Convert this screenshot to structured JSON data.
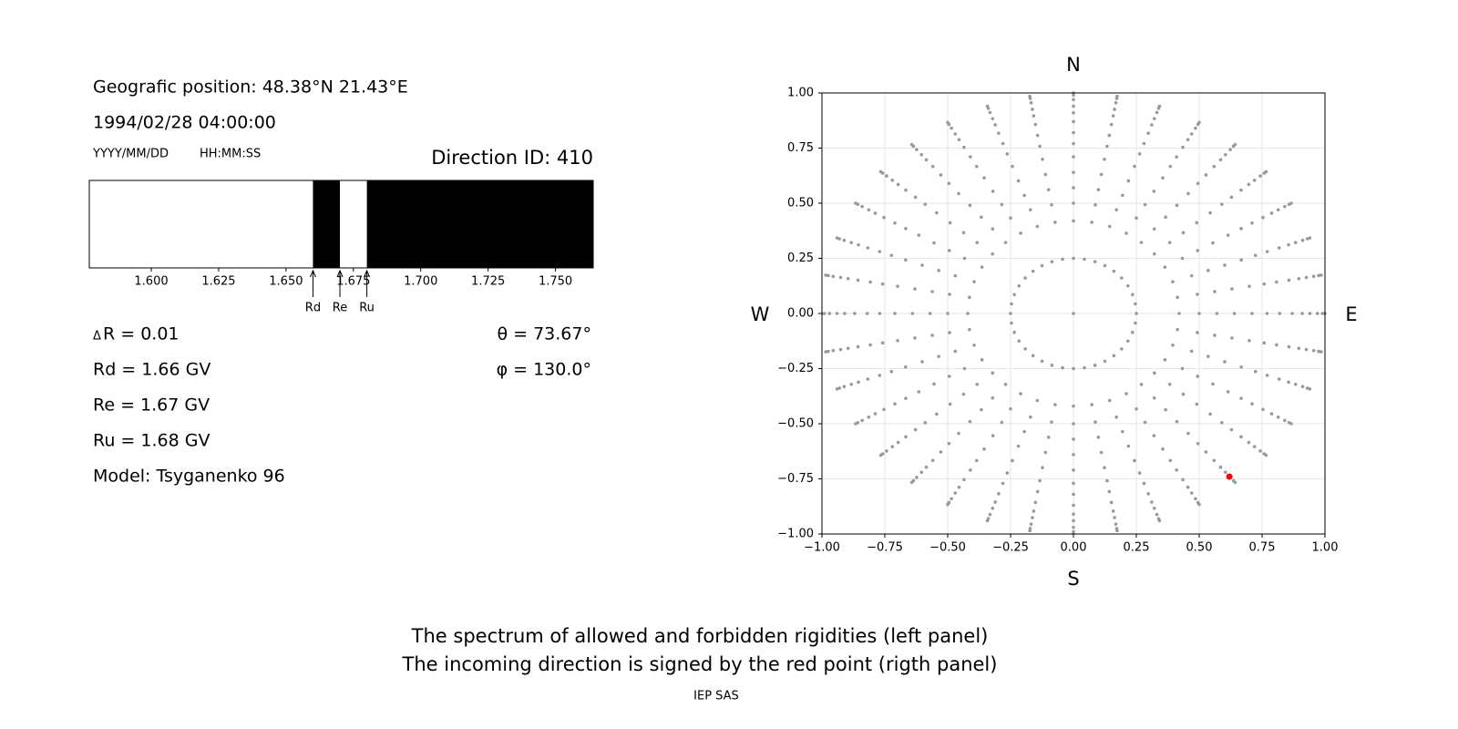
{
  "position": "Geografic position: 48.38°N 21.43°E",
  "datetime": "1994/02/28 04:00:00",
  "date_format": "YYYY/MM/DD",
  "time_format": "HH:MM:SS",
  "direction_id": "Direction ID: 410",
  "delta_r": {
    "symbol": "Δ",
    "text": "R = 0.01"
  },
  "rd": "Rd = 1.66 GV",
  "re": "Re = 1.67 GV",
  "ru": "Ru = 1.68 GV",
  "model": "Model: Tsyganenko 96",
  "theta": "θ = 73.67°",
  "phi": "φ = 130.0°",
  "caption": [
    "The spectrum of allowed and forbidden rigidities (left panel)",
    "The incoming direction is signed by the red point (rigth panel)"
  ],
  "credit": "IEP SAS",
  "chart_data": [
    {
      "type": "spectrum",
      "xlim": [
        1.577,
        1.764
      ],
      "xticks": [
        {
          "value": 1.6,
          "label": "1.600"
        },
        {
          "value": 1.625,
          "label": "1.625"
        },
        {
          "value": 1.65,
          "label": "1.650"
        },
        {
          "value": 1.675,
          "label": "1.675"
        },
        {
          "value": 1.7,
          "label": "1.700"
        },
        {
          "value": 1.725,
          "label": "1.725"
        },
        {
          "value": 1.75,
          "label": "1.750"
        }
      ],
      "edges": [
        1.66,
        1.67,
        1.68
      ],
      "allowed": [
        true,
        false,
        true,
        false
      ],
      "marker_labels": [
        "Rd",
        "Re",
        "Ru"
      ]
    },
    {
      "type": "scatter",
      "compass": {
        "n": "N",
        "s": "S",
        "w": "W",
        "e": "E"
      },
      "xlim": [
        -1,
        1
      ],
      "ylim": [
        -1,
        1
      ],
      "xticks": [
        {
          "value": -1,
          "label": "−1.00"
        },
        {
          "value": -0.75,
          "label": "−0.75"
        },
        {
          "value": -0.5,
          "label": "−0.50"
        },
        {
          "value": -0.25,
          "label": "−0.25"
        },
        {
          "value": 0,
          "label": "0.00"
        },
        {
          "value": 0.25,
          "label": "0.25"
        },
        {
          "value": 0.5,
          "label": "0.50"
        },
        {
          "value": 0.75,
          "label": "0.75"
        },
        {
          "value": 1,
          "label": "1.00"
        }
      ],
      "yticks": [
        {
          "value": -1,
          "label": "−1.00"
        },
        {
          "value": -0.75,
          "label": "−0.75"
        },
        {
          "value": -0.5,
          "label": "−0.50"
        },
        {
          "value": -0.25,
          "label": "−0.25"
        },
        {
          "value": 0,
          "label": "0.00"
        },
        {
          "value": 0.25,
          "label": "0.25"
        },
        {
          "value": 0.5,
          "label": "0.50"
        },
        {
          "value": 0.75,
          "label": "0.75"
        },
        {
          "value": 1,
          "label": "1.00"
        }
      ],
      "grid": true,
      "color": "#999999",
      "rays": {
        "phi": [
          0,
          10,
          20,
          30,
          40,
          50,
          60,
          70,
          80,
          90,
          100,
          110,
          120,
          130,
          140,
          150,
          160,
          170,
          180,
          190,
          200,
          210,
          220,
          230,
          240,
          250,
          260,
          270,
          280,
          290,
          300,
          310,
          320,
          330,
          340,
          350
        ],
        "r": [
          0.42,
          0.5,
          0.57,
          0.64,
          0.71,
          0.77,
          0.82,
          0.87,
          0.91,
          0.94,
          0.97,
          0.99,
          1.0
        ]
      },
      "ring": {
        "r": 0.25
      },
      "center": {
        "x": 0,
        "y": 0
      },
      "highlight": {
        "x": 0.62,
        "y": -0.74,
        "color": "#ff0000"
      }
    }
  ]
}
